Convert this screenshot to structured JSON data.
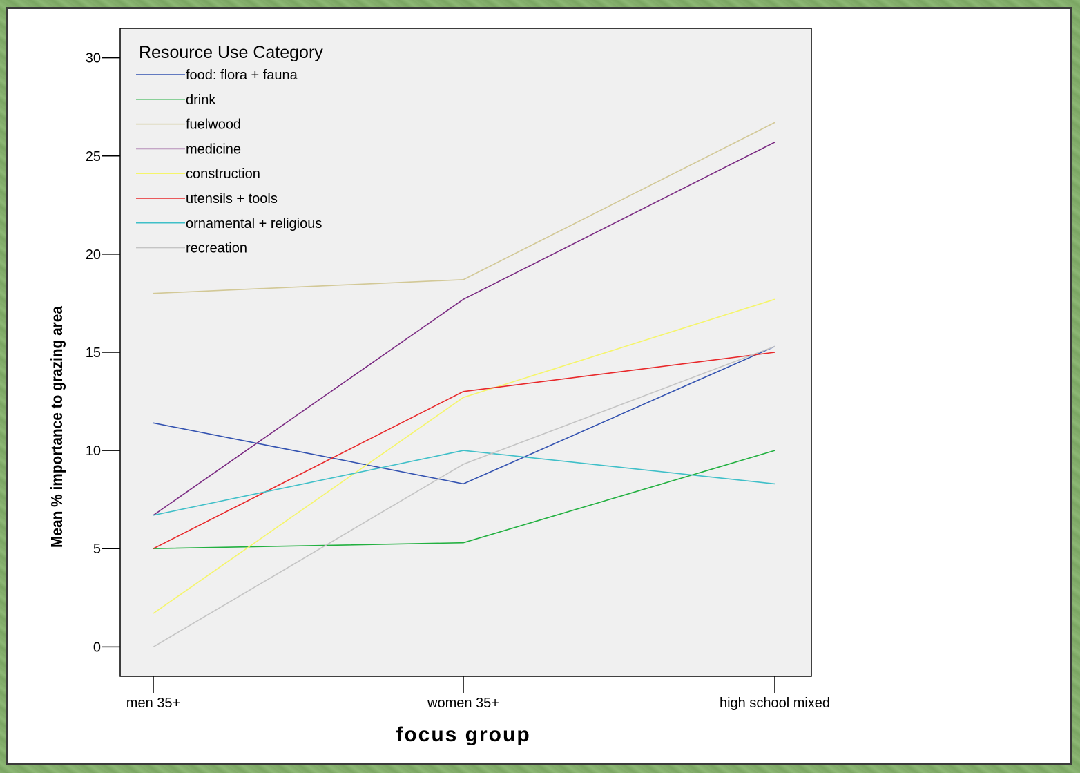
{
  "chart_data": {
    "type": "line",
    "title": "",
    "xlabel": "focus group",
    "ylabel": "Mean % importance to grazing area",
    "categories": [
      "men 35+",
      "women 35+",
      "high school mixed"
    ],
    "ylim": [
      -1.5,
      31.5
    ],
    "yticks": [
      0,
      5,
      10,
      15,
      20,
      25,
      30
    ],
    "legend": {
      "title": "Resource Use Category",
      "position": "top-left"
    },
    "grid": false,
    "series": [
      {
        "name": "food: flora + fauna",
        "color": "#3352b0",
        "values": [
          11.4,
          8.3,
          15.3
        ]
      },
      {
        "name": "drink",
        "color": "#22b040",
        "values": [
          5.0,
          5.3,
          10.0
        ]
      },
      {
        "name": "fuelwood",
        "color": "#d2c896",
        "values": [
          18.0,
          18.7,
          26.7
        ]
      },
      {
        "name": "medicine",
        "color": "#7a2a82",
        "values": [
          6.7,
          17.7,
          25.7
        ]
      },
      {
        "name": "construction",
        "color": "#f5f56a",
        "values": [
          1.7,
          12.7,
          17.7
        ]
      },
      {
        "name": "utensils + tools",
        "color": "#e8282a",
        "values": [
          5.0,
          13.0,
          15.0
        ]
      },
      {
        "name": "ornamental + religious",
        "color": "#3fbfc8",
        "values": [
          6.7,
          10.0,
          8.3
        ]
      },
      {
        "name": "recreation",
        "color": "#c4c4c4",
        "values": [
          0.0,
          9.3,
          15.3
        ]
      }
    ]
  }
}
